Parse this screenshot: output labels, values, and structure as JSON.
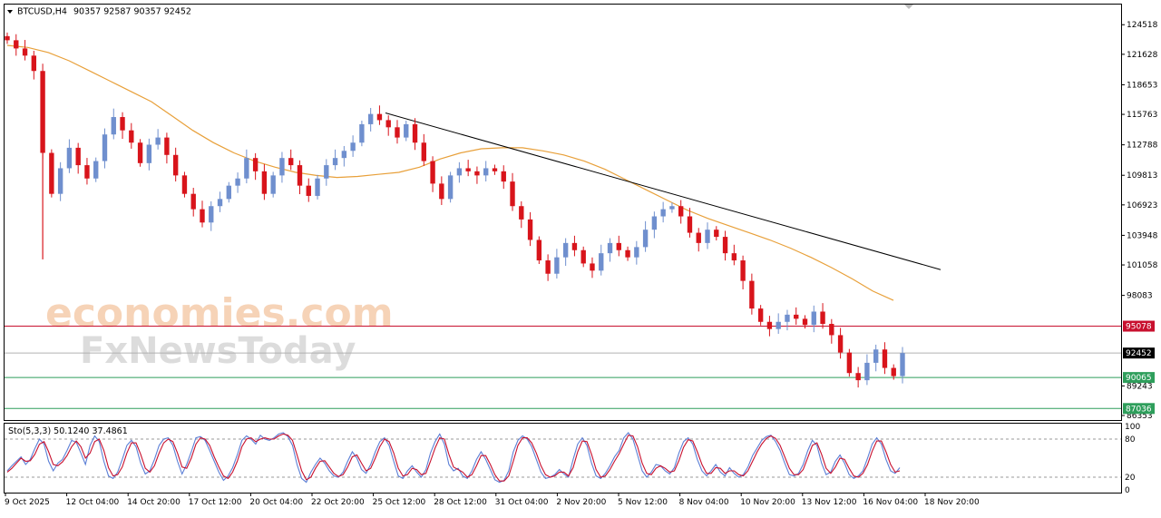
{
  "header": {
    "symbol": "BTCUSD,H4",
    "ohlc": "90357 92587 90357 92452"
  },
  "stoch_header": "Sto(5,3,3) 50.1240 37.4861",
  "watermark": {
    "line1": "economies.com",
    "line2": "FxNewsToday"
  },
  "colors": {
    "bull": "#6f8fce",
    "bear": "#d8141b",
    "ma": "#e8a03a",
    "trendline": "#000000",
    "resistance": "#c8102e",
    "support": "#2e9e5b",
    "price": "#000000",
    "stoch_main": "#5b7fd6",
    "stoch_signal": "#c8102e"
  },
  "chart_data": [
    {
      "type": "candlestick",
      "symbol": "BTCUSD",
      "timeframe": "H4",
      "ylim": [
        86000,
        126400
      ],
      "y_ticks": [
        "124518",
        "121628",
        "118653",
        "115763",
        "112788",
        "109813",
        "106923",
        "103948",
        "101058",
        "98083",
        "89243",
        "86353"
      ],
      "x_ticks": [
        "9 Oct 2025",
        "12 Oct 04:00",
        "14 Oct 20:00",
        "17 Oct 12:00",
        "20 Oct 04:00",
        "22 Oct 20:00",
        "25 Oct 12:00",
        "28 Oct 12:00",
        "31 Oct 04:00",
        "2 Nov 20:00",
        "5 Nov 12:00",
        "8 Nov 04:00",
        "10 Nov 20:00",
        "13 Nov 12:00",
        "16 Nov 04:00",
        "18 Nov 20:00"
      ],
      "series": [
        {
          "name": "",
          "kind": "close-path",
          "values": [
            123000,
            122200,
            121500,
            120000,
            112000,
            108000,
            110500,
            112500,
            110800,
            109500,
            111200,
            113800,
            115500,
            114200,
            113000,
            111000,
            112800,
            113500,
            111800,
            109800,
            108000,
            106500,
            105200,
            106800,
            107500,
            108800,
            109500,
            111500,
            110200,
            108000,
            109800,
            111500,
            110800,
            108800,
            107800,
            109500,
            110800,
            111500,
            112200,
            113000,
            114800,
            115800,
            115200,
            114500,
            113500,
            114800,
            113000,
            111200,
            109000,
            107500,
            109800,
            110500,
            110200,
            109800,
            110500,
            110200,
            109200,
            106800,
            105500,
            103500,
            101500,
            100200,
            101800,
            103200,
            102500,
            101200,
            100500,
            102200,
            103200,
            102500,
            101800,
            102800,
            104500,
            105800,
            106500,
            106800,
            105800,
            104200,
            103200,
            104500,
            103800,
            102200,
            101500,
            99500,
            96800,
            95500,
            94800,
            95500,
            96200,
            95800,
            95200,
            96500,
            95300,
            94200,
            92500,
            90500,
            89800,
            91500,
            92800,
            91000,
            90200,
            92452
          ]
        },
        {
          "name": "",
          "kind": "moving-average",
          "values": [
            122500,
            122300,
            121800,
            121000,
            120000,
            119000,
            118000,
            117000,
            115600,
            114200,
            113000,
            112000,
            111200,
            110600,
            110100,
            109800,
            109600,
            109700,
            109900,
            110100,
            110600,
            111400,
            112000,
            112400,
            112500,
            112500,
            112200,
            111800,
            111200,
            110400,
            109400,
            108400,
            107400,
            106400,
            105600,
            104900,
            104200,
            103500,
            102700,
            101800,
            100800,
            99700,
            98500,
            97600
          ]
        }
      ],
      "lines": [
        {
          "name": "",
          "type": "trendline",
          "from": [
            "25 Oct 12:00",
            115900
          ],
          "to": [
            "18 Nov 20:00",
            100600
          ]
        },
        {
          "name": "",
          "type": "horizontal",
          "value": 95078,
          "label": "95078",
          "color": "resistance"
        },
        {
          "name": "",
          "type": "horizontal",
          "value": 92452,
          "label": "92452",
          "color": "price"
        },
        {
          "name": "",
          "type": "horizontal",
          "value": 90065,
          "label": "90065",
          "color": "support"
        },
        {
          "name": "",
          "type": "horizontal",
          "value": 87036,
          "label": "87036",
          "color": "support"
        }
      ]
    },
    {
      "type": "line",
      "name": "Sto(5,3,3)",
      "ylim": [
        0,
        100
      ],
      "y_ticks": [
        "100",
        "80",
        "20",
        "0"
      ],
      "levels": [
        80,
        20
      ],
      "series": [
        {
          "name": "",
          "role": "main",
          "values": [
            30,
            38,
            45,
            52,
            40,
            48,
            65,
            80,
            72,
            45,
            30,
            42,
            48,
            62,
            78,
            75,
            58,
            40,
            70,
            85,
            76,
            45,
            22,
            18,
            28,
            48,
            70,
            78,
            68,
            42,
            25,
            30,
            48,
            70,
            80,
            82,
            70,
            45,
            25,
            40,
            60,
            82,
            84,
            78,
            62,
            45,
            28,
            15,
            22,
            35,
            55,
            78,
            85,
            80,
            72,
            86,
            80,
            78,
            82,
            88,
            90,
            84,
            70,
            40,
            18,
            12,
            28,
            40,
            50,
            42,
            30,
            22,
            20,
            28,
            45,
            60,
            50,
            32,
            26,
            40,
            60,
            76,
            82,
            70,
            45,
            22,
            18,
            30,
            38,
            28,
            20,
            32,
            58,
            76,
            88,
            72,
            40,
            30,
            34,
            22,
            18,
            30,
            48,
            60,
            48,
            32,
            16,
            12,
            15,
            30,
            60,
            78,
            85,
            80,
            68,
            48,
            28,
            18,
            20,
            24,
            32,
            25,
            20,
            48,
            72,
            82,
            70,
            42,
            22,
            18,
            26,
            38,
            52,
            62,
            82,
            90,
            80,
            55,
            30,
            20,
            28,
            40,
            38,
            30,
            25,
            35,
            58,
            76,
            82,
            72,
            48,
            30,
            22,
            30,
            40,
            28,
            22,
            35,
            26,
            20,
            24,
            36,
            54,
            66,
            78,
            84,
            86,
            76,
            62,
            42,
            24,
            22,
            26,
            40,
            62,
            78,
            70,
            42,
            24,
            28,
            45,
            55,
            42,
            24,
            18,
            22,
            30,
            50,
            72,
            82,
            72,
            48,
            30,
            26,
            35
          ]
        },
        {
          "name": "",
          "role": "signal",
          "values": [
            28,
            34,
            42,
            50,
            45,
            46,
            56,
            72,
            76,
            60,
            40,
            38,
            44,
            54,
            68,
            77,
            68,
            50,
            58,
            76,
            80,
            62,
            35,
            22,
            24,
            36,
            58,
            74,
            74,
            56,
            34,
            28,
            38,
            58,
            74,
            80,
            76,
            58,
            36,
            34,
            50,
            72,
            82,
            80,
            70,
            52,
            36,
            22,
            18,
            28,
            45,
            68,
            80,
            82,
            76,
            80,
            82,
            80,
            80,
            85,
            88,
            86,
            78,
            55,
            30,
            16,
            20,
            34,
            45,
            46,
            36,
            26,
            21,
            24,
            36,
            52,
            55,
            42,
            30,
            34,
            50,
            68,
            80,
            76,
            58,
            34,
            22,
            24,
            34,
            32,
            24,
            26,
            45,
            66,
            82,
            80,
            56,
            36,
            32,
            28,
            20,
            24,
            38,
            54,
            54,
            40,
            24,
            14,
            14,
            22,
            45,
            70,
            82,
            82,
            74,
            58,
            38,
            24,
            20,
            22,
            28,
            28,
            22,
            35,
            60,
            77,
            76,
            56,
            32,
            20,
            22,
            32,
            45,
            57,
            72,
            86,
            85,
            68,
            42,
            26,
            24,
            34,
            38,
            34,
            28,
            30,
            46,
            67,
            79,
            77,
            60,
            40,
            26,
            26,
            35,
            34,
            26,
            30,
            30,
            24,
            22,
            30,
            45,
            60,
            72,
            81,
            85,
            81,
            70,
            52,
            34,
            24,
            24,
            32,
            51,
            70,
            74,
            56,
            34,
            26,
            36,
            50,
            48,
            34,
            22,
            20,
            26,
            40,
            61,
            77,
            77,
            60,
            40,
            28,
            30
          ]
        }
      ]
    }
  ]
}
